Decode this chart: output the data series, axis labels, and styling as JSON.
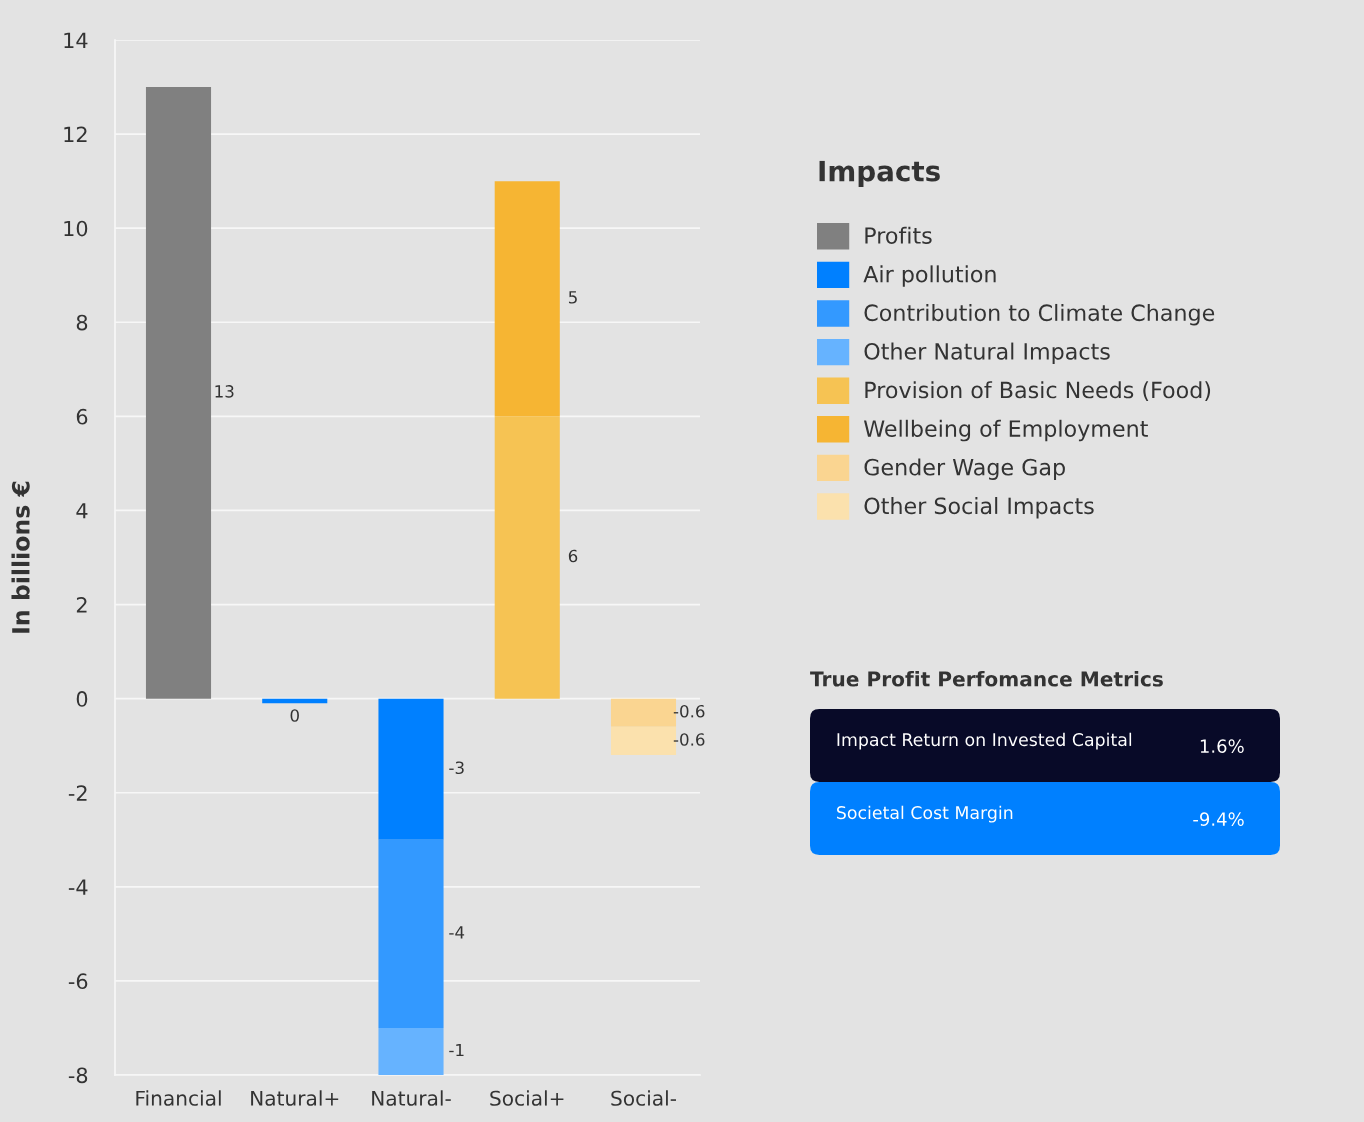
{
  "chart_data": [
    {
      "type": "bar",
      "stacked": true,
      "categories": [
        "Financial",
        "Natural+",
        "Natural-",
        "Social+",
        "Social-"
      ],
      "ylabel": "In billions €",
      "legend_title": "Impacts",
      "legend": "right",
      "grid": "y",
      "ylim": [
        -8,
        14
      ],
      "yticks": [
        -8,
        -6,
        -4,
        -2,
        0,
        2,
        4,
        6,
        8,
        10,
        12,
        14
      ],
      "series": [
        {
          "name": "Profits",
          "color": "#808080",
          "values": [
            13,
            null,
            null,
            null,
            null
          ],
          "value_labels": [
            "13",
            null,
            null,
            null,
            null
          ]
        },
        {
          "name": "Air pollution",
          "color": "#0080ff",
          "values": [
            null,
            -0.1,
            -3,
            null,
            null
          ],
          "value_labels": [
            null,
            "0",
            "-3",
            null,
            null
          ]
        },
        {
          "name": "Contribution to Climate Change",
          "color": "#3399ff",
          "values": [
            null,
            null,
            -4,
            null,
            null
          ],
          "value_labels": [
            null,
            null,
            "-4",
            null,
            null
          ]
        },
        {
          "name": "Other Natural Impacts",
          "color": "#66b3ff",
          "values": [
            null,
            null,
            -1,
            null,
            null
          ],
          "value_labels": [
            null,
            null,
            "-1",
            null,
            null
          ]
        },
        {
          "name": "Provision of Basic Needs (Food)",
          "color": "#f6c353",
          "values": [
            null,
            null,
            null,
            6,
            null
          ],
          "value_labels": [
            null,
            null,
            null,
            "6",
            null
          ]
        },
        {
          "name": "Wellbeing of Employment",
          "color": "#f6b533",
          "values": [
            null,
            null,
            null,
            5,
            null
          ],
          "value_labels": [
            null,
            null,
            null,
            "5",
            null
          ]
        },
        {
          "name": "Gender Wage Gap",
          "color": "#fad591",
          "values": [
            null,
            null,
            null,
            null,
            -0.6
          ],
          "value_labels": [
            null,
            null,
            null,
            null,
            "-0.6"
          ]
        },
        {
          "name": "Other Social Impacts",
          "color": "#fbe1ad",
          "values": [
            null,
            null,
            null,
            null,
            -0.6
          ],
          "value_labels": [
            null,
            null,
            null,
            null,
            "-0.6"
          ]
        }
      ]
    },
    {
      "type": "other",
      "title": "True Profit Perfomance Metrics",
      "categories": [
        "Impact Return on Invested Capital",
        "Societal Cost Margin"
      ],
      "value_labels": [
        "1.6%",
        "-9.4%"
      ],
      "colors": [
        "#080a28",
        "#0080ff"
      ]
    }
  ]
}
